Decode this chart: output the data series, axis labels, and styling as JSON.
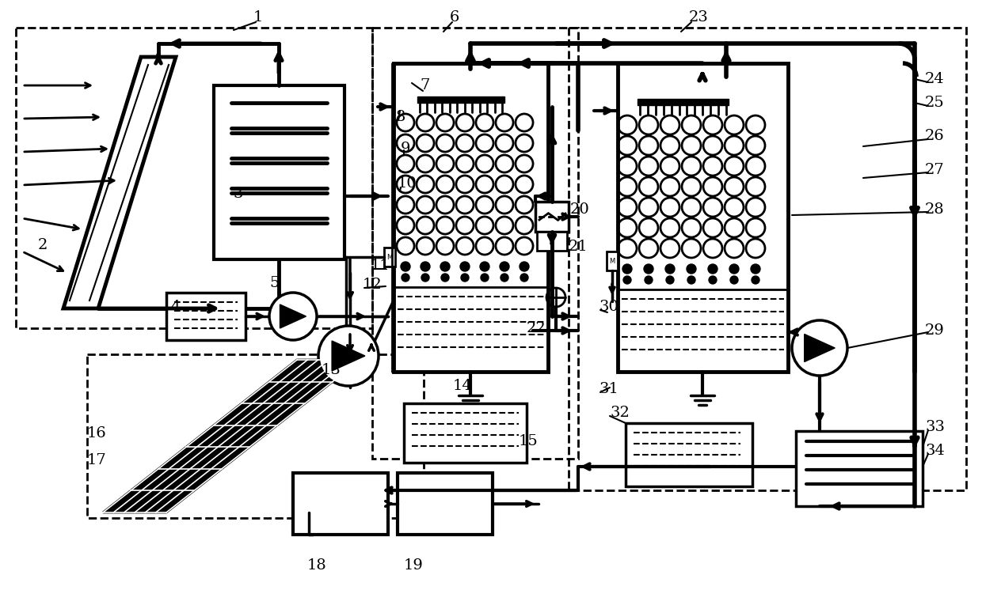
{
  "bg_color": "#ffffff",
  "lw": 2.5,
  "lw_thin": 1.5,
  "lw_thick": 4.0
}
